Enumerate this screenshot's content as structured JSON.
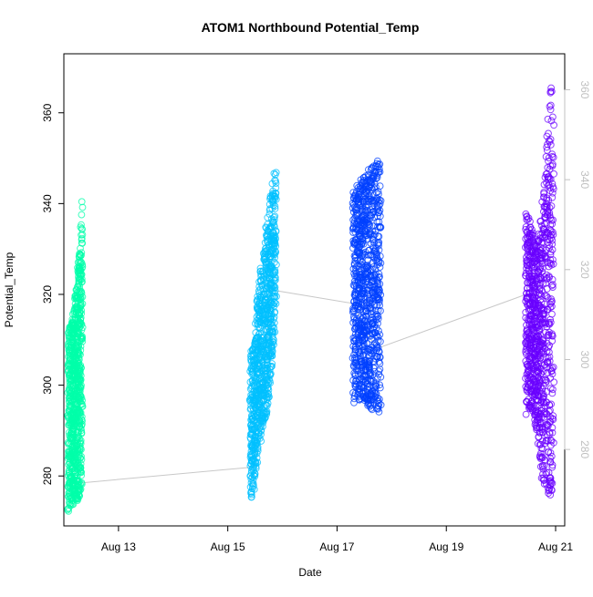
{
  "chart_data": {
    "type": "scatter",
    "title": "ATOM1 Northbound Potential_Temp",
    "xlabel": "Date",
    "ylabel": "Potential_Temp",
    "x_axis": {
      "scale": "date",
      "range": [
        "2024-08-12T00:00",
        "2024-08-21T04:00"
      ],
      "ticks": [
        {
          "label": "Aug 13",
          "value": "2024-08-13"
        },
        {
          "label": "Aug 15",
          "value": "2024-08-15"
        },
        {
          "label": "Aug 17",
          "value": "2024-08-17"
        },
        {
          "label": "Aug 19",
          "value": "2024-08-19"
        },
        {
          "label": "Aug 21",
          "value": "2024-08-21"
        }
      ]
    },
    "y_axis_left": {
      "range": [
        269,
        373
      ],
      "ticks": [
        280,
        300,
        320,
        340,
        360
      ],
      "color": "#000000"
    },
    "y_axis_right": {
      "range": [
        263,
        368
      ],
      "ticks": [
        280,
        300,
        320,
        340,
        360
      ],
      "color": "#c0c0c0"
    },
    "grid": false,
    "legend": "none",
    "connector_color": "#c8c8c8",
    "connector_path": [
      {
        "x": "2024-08-12T08:00",
        "y": 278.5
      },
      {
        "x": "2024-08-15T12:00",
        "y": 282
      },
      {
        "x": "2024-08-15T19:00",
        "y": 321
      },
      {
        "x": "2024-08-17T07:00",
        "y": 318
      },
      {
        "x": "2024-08-17T17:00",
        "y": 308
      },
      {
        "x": "2024-08-20T11:00",
        "y": 320
      }
    ],
    "series": [
      {
        "color": "#00ffaa",
        "x_range": [
          "2024-08-12T02:00",
          "2024-08-12T08:00"
        ],
        "profile": [
          {
            "f": 0.0,
            "min": 272,
            "max": 313
          },
          {
            "f": 0.15,
            "min": 274,
            "max": 314
          },
          {
            "f": 0.3,
            "min": 273,
            "max": 315
          },
          {
            "f": 0.5,
            "min": 275,
            "max": 320
          },
          {
            "f": 0.7,
            "min": 274,
            "max": 326
          },
          {
            "f": 0.85,
            "min": 276,
            "max": 330
          },
          {
            "f": 0.95,
            "min": 278,
            "max": 340
          },
          {
            "f": 1.0,
            "min": 285,
            "max": 347
          }
        ]
      },
      {
        "color": "#00c0ff",
        "x_range": [
          "2024-08-15T10:00",
          "2024-08-15T21:00"
        ],
        "profile": [
          {
            "f": 0.0,
            "min": 275,
            "max": 308
          },
          {
            "f": 0.15,
            "min": 276,
            "max": 309
          },
          {
            "f": 0.3,
            "min": 285,
            "max": 322
          },
          {
            "f": 0.5,
            "min": 290,
            "max": 328
          },
          {
            "f": 0.7,
            "min": 295,
            "max": 338
          },
          {
            "f": 0.85,
            "min": 305,
            "max": 343
          },
          {
            "f": 1.0,
            "min": 315,
            "max": 349
          }
        ]
      },
      {
        "color": "#0040ff",
        "x_range": [
          "2024-08-17T07:00",
          "2024-08-17T19:00"
        ],
        "profile": [
          {
            "f": 0.0,
            "min": 295,
            "max": 343
          },
          {
            "f": 0.3,
            "min": 297,
            "max": 346
          },
          {
            "f": 0.6,
            "min": 295,
            "max": 348
          },
          {
            "f": 0.85,
            "min": 294,
            "max": 349
          },
          {
            "f": 1.0,
            "min": 294,
            "max": 351
          }
        ]
      },
      {
        "color": "#6a00ff",
        "x_range": [
          "2024-08-20T11:00",
          "2024-08-20T23:00"
        ],
        "profile": [
          {
            "f": 0.0,
            "min": 293,
            "max": 339
          },
          {
            "f": 0.2,
            "min": 295,
            "max": 335
          },
          {
            "f": 0.4,
            "min": 290,
            "max": 330
          },
          {
            "f": 0.6,
            "min": 279,
            "max": 340
          },
          {
            "f": 0.75,
            "min": 276,
            "max": 355
          },
          {
            "f": 0.9,
            "min": 275,
            "max": 368
          },
          {
            "f": 1.0,
            "min": 278,
            "max": 358
          }
        ]
      }
    ]
  }
}
